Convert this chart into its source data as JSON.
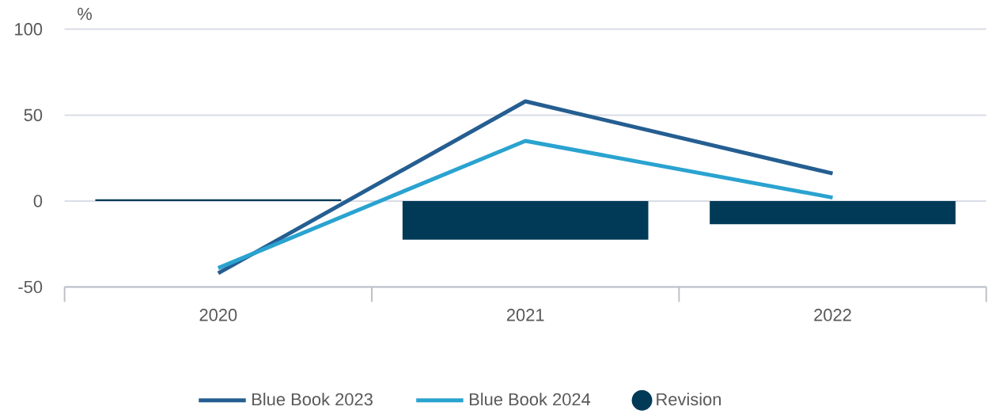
{
  "chart_data": {
    "type": "line",
    "ylabel": "%",
    "categories": [
      "2020",
      "2021",
      "2022"
    ],
    "series": [
      {
        "name": "Blue Book 2023",
        "color": "#255e91",
        "values": [
          -42,
          58,
          16
        ]
      },
      {
        "name": "Blue Book 2024",
        "color": "#2aa3d0",
        "values": [
          -39,
          35,
          2
        ]
      },
      {
        "name": "Revision",
        "type": "bar",
        "color": "#003a57",
        "values": [
          1,
          -22.5,
          -13.5
        ]
      }
    ],
    "ylim": [
      -50,
      100
    ],
    "yticks": [
      -50,
      0,
      50,
      100
    ],
    "grid": "y",
    "legend": "bottom"
  }
}
